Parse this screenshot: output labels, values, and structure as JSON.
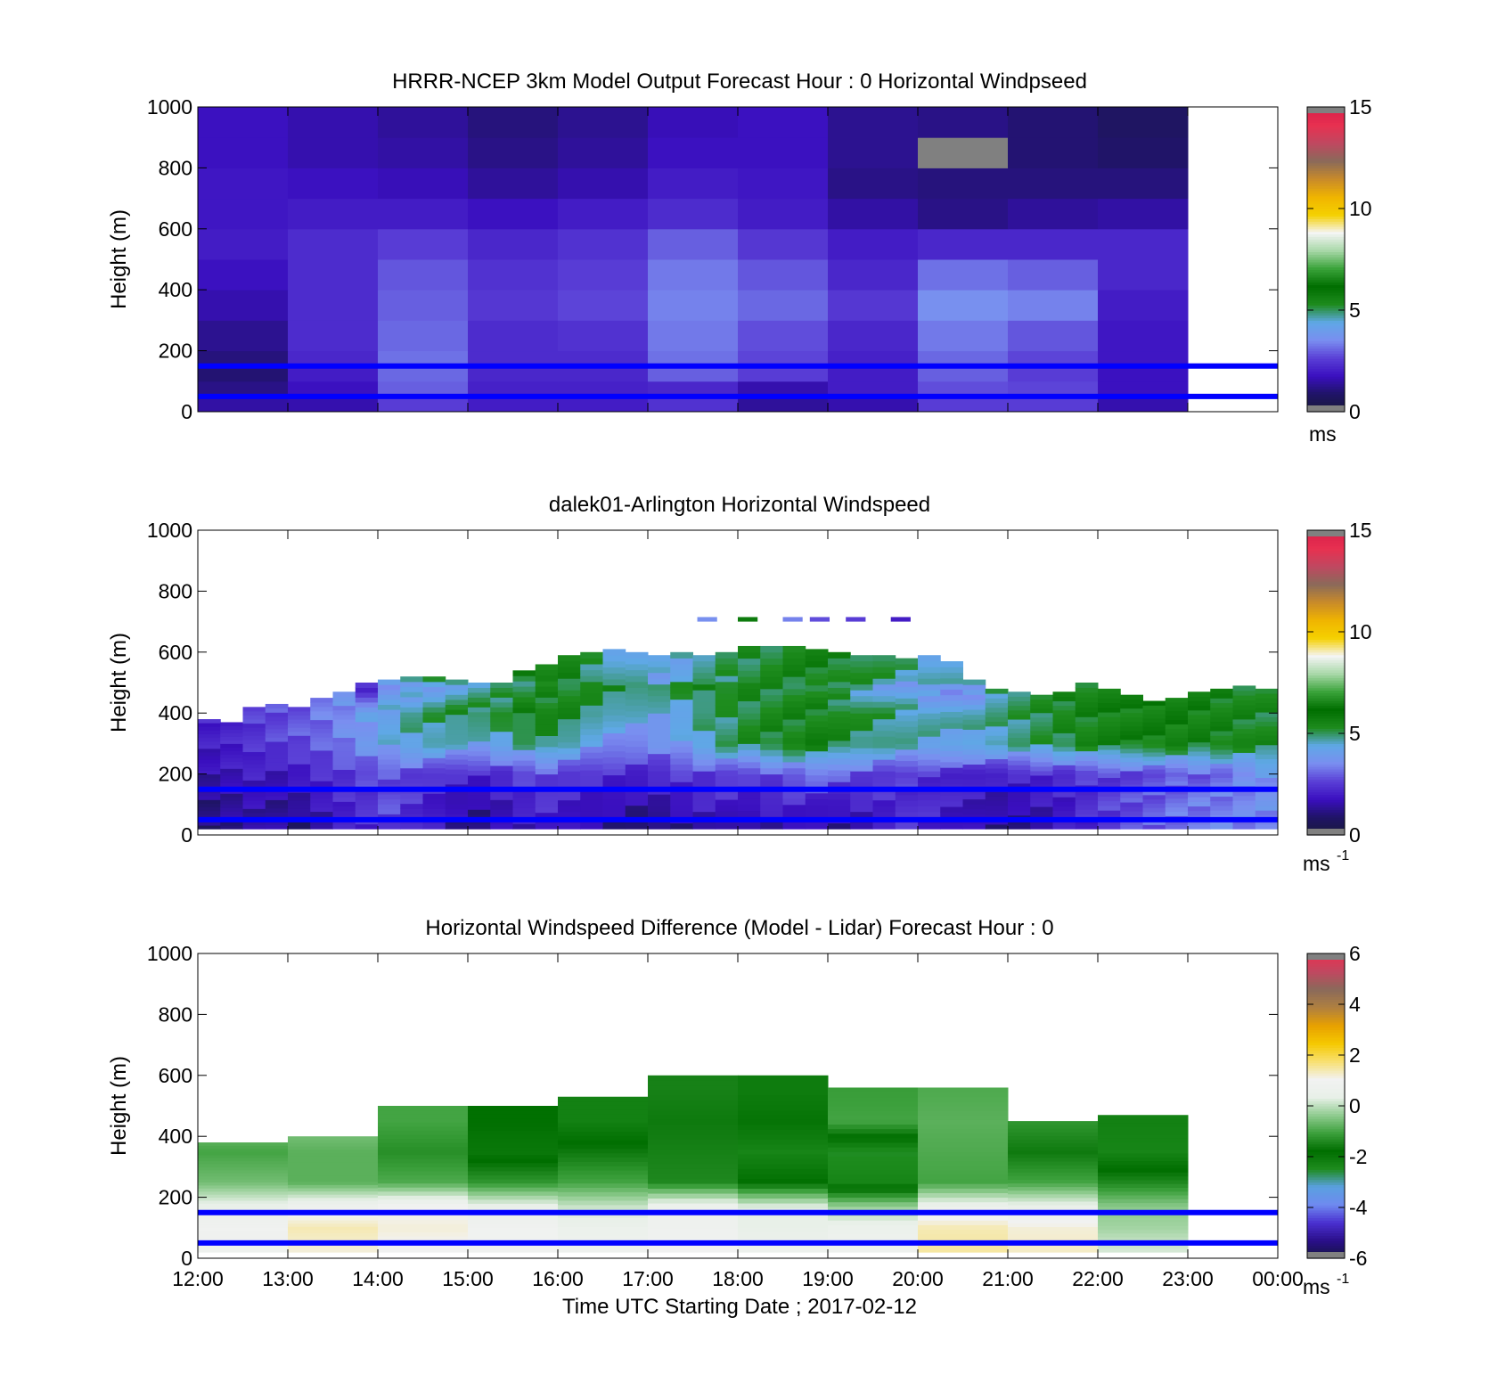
{
  "colors": {
    "speed_scale": [
      "#1a1a3a",
      "#1f1466",
      "#3a0fbf",
      "#5a3fd6",
      "#7a8ef0",
      "#5fa8e6",
      "#1e8c1e",
      "#006e00",
      "#3aa33a",
      "#a8d8a8",
      "#f5f5f5",
      "#f5d000",
      "#f0b400",
      "#c88a2a",
      "#8a6a5a",
      "#c04860",
      "#e83050",
      "#d8204a"
    ],
    "diff_scale": [
      "#141440",
      "#2a0f8a",
      "#4a30d0",
      "#6f8af0",
      "#5aa0e0",
      "#1e8c1e",
      "#006e00",
      "#3ca03c",
      "#90cc90",
      "#e8f0e8",
      "#f2f2f2",
      "#f8e070",
      "#f5c800",
      "#e8a000",
      "#b08040",
      "#8a6a5a",
      "#c04860",
      "#e83050"
    ],
    "boundary_line": "#0000ff",
    "missing": "#808080"
  },
  "chart_data": [
    {
      "type": "heatmap",
      "title": "HRRR-NCEP 3km Model Output   Forecast Hour : 0 Horizontal Windpseed",
      "ylabel": "Height (m)",
      "xlabel": "",
      "ylim": [
        0,
        1000
      ],
      "xlim": [
        12,
        24
      ],
      "yticks": [
        "0",
        "200",
        "400",
        "600",
        "800",
        "1000"
      ],
      "colorbar": {
        "ticks": [
          "0",
          "5",
          "10",
          "15"
        ],
        "range": [
          0,
          15
        ],
        "unit_label": "ms",
        "unit_sup": ""
      },
      "reference_lines_height_m": [
        150,
        50
      ],
      "hours": [
        12,
        13,
        14,
        15,
        16,
        17,
        18,
        19,
        20,
        21,
        22
      ],
      "heights": [
        0,
        50,
        100,
        150,
        200,
        300,
        400,
        500,
        600,
        700,
        800,
        900
      ],
      "values": [
        [
          1.5,
          1.6,
          2.6,
          2.0,
          2.0,
          2.4,
          1.4,
          1.6,
          2.6,
          2.6,
          1.6
        ],
        [
          1.2,
          1.8,
          3.0,
          2.1,
          2.1,
          2.2,
          1.6,
          2.0,
          2.8,
          2.7,
          1.8
        ],
        [
          1.0,
          2.0,
          3.1,
          2.2,
          2.2,
          3.0,
          2.6,
          2.0,
          3.0,
          2.6,
          1.8
        ],
        [
          1.1,
          2.2,
          3.2,
          2.3,
          2.3,
          3.2,
          2.7,
          2.1,
          3.1,
          2.7,
          1.9
        ],
        [
          1.3,
          2.3,
          3.1,
          2.3,
          2.4,
          3.3,
          2.8,
          2.2,
          3.3,
          2.9,
          1.9
        ],
        [
          1.6,
          2.3,
          3.0,
          2.5,
          2.7,
          3.4,
          3.1,
          2.5,
          3.6,
          3.4,
          2.0
        ],
        [
          1.8,
          2.3,
          2.9,
          2.4,
          2.6,
          3.3,
          2.9,
          2.2,
          3.2,
          3.0,
          2.2
        ],
        [
          2.0,
          2.3,
          2.6,
          2.2,
          2.4,
          3.0,
          2.5,
          2.0,
          2.2,
          2.2,
          2.2
        ],
        [
          1.9,
          2.0,
          2.0,
          1.8,
          2.0,
          2.3,
          2.0,
          1.5,
          1.2,
          1.4,
          1.5
        ],
        [
          1.9,
          1.8,
          1.7,
          1.4,
          1.6,
          2.0,
          1.9,
          1.2,
          1.1,
          1.1,
          1.1
        ],
        [
          1.8,
          1.6,
          1.5,
          1.2,
          1.4,
          1.8,
          1.8,
          1.3,
          null,
          1.0,
          0.9
        ],
        [
          1.8,
          1.6,
          1.4,
          1.1,
          1.3,
          1.7,
          1.8,
          1.3,
          1.2,
          1.0,
          0.8
        ]
      ]
    },
    {
      "type": "heatmap",
      "title": "dalek01-Arlington  Horizontal Windspeed",
      "ylabel": "Height (m)",
      "xlabel": "",
      "ylim": [
        0,
        1000
      ],
      "xlim": [
        12,
        24
      ],
      "yticks": [
        "0",
        "200",
        "400",
        "600",
        "800",
        "1000"
      ],
      "colorbar": {
        "ticks": [
          "0",
          "5",
          "10",
          "15"
        ],
        "range": [
          0,
          15
        ],
        "unit_label": "ms",
        "unit_sup": "-1"
      },
      "reference_lines_height_m": [
        150,
        50
      ],
      "column_width_h": 0.25,
      "column_start_hours": [
        12,
        12.25,
        12.5,
        12.75,
        13,
        13.25,
        13.5,
        13.75,
        14,
        14.25,
        14.5,
        14.75,
        15,
        15.25,
        15.5,
        15.75,
        16,
        16.25,
        16.5,
        16.75,
        17,
        17.25,
        17.5,
        17.75,
        18,
        18.25,
        18.5,
        18.75,
        19,
        19.25,
        19.5,
        19.75,
        20,
        20.25,
        20.5,
        20.75,
        21,
        21.25,
        21.5,
        21.75,
        22,
        22.25,
        22.5,
        22.75,
        23,
        23.25,
        23.5,
        23.75
      ],
      "column_top_heights_m": [
        380,
        370,
        420,
        430,
        420,
        450,
        470,
        500,
        510,
        520,
        520,
        510,
        500,
        500,
        540,
        560,
        590,
        600,
        610,
        600,
        590,
        600,
        590,
        600,
        620,
        620,
        620,
        610,
        600,
        590,
        590,
        580,
        590,
        570,
        510,
        480,
        470,
        460,
        470,
        500,
        480,
        460,
        440,
        450,
        470,
        480,
        490,
        480
      ],
      "levels": [
        {
          "height_m": 30,
          "values": [
            1.0,
            1.2,
            1.5,
            1.3,
            1.0,
            1.5,
            2.0,
            2.2,
            2.5,
            2.2,
            1.8,
            1.4,
            1.2,
            1.6,
            1.8,
            2.0,
            1.8,
            1.4,
            1.2,
            1.0,
            1.0,
            1.3,
            1.6,
            1.4,
            1.2,
            1.5,
            1.8,
            1.6,
            1.4,
            1.7,
            2.0,
            2.3,
            2.1,
            1.8,
            1.6,
            1.3,
            1.2,
            1.4,
            1.8,
            2.2,
            2.5,
            2.8,
            3.0,
            3.2,
            3.3,
            3.4,
            3.4,
            3.5
          ]
        },
        {
          "height_m": 100,
          "values": [
            1.2,
            1.4,
            1.6,
            1.4,
            1.5,
            1.8,
            2.2,
            2.5,
            2.8,
            2.4,
            2.0,
            1.6,
            1.4,
            1.8,
            2.1,
            2.3,
            2.0,
            1.8,
            1.6,
            1.5,
            1.6,
            1.8,
            2.0,
            2.1,
            1.9,
            2.0,
            2.2,
            2.0,
            1.8,
            2.0,
            2.2,
            2.4,
            2.2,
            2.0,
            1.8,
            1.6,
            1.6,
            1.8,
            2.0,
            2.3,
            2.6,
            2.8,
            3.0,
            3.2,
            3.3,
            3.4,
            3.5,
            3.6
          ]
        },
        {
          "height_m": 200,
          "values": [
            1.6,
            1.8,
            2.0,
            1.8,
            2.0,
            2.3,
            2.5,
            2.7,
            2.8,
            2.7,
            2.5,
            2.3,
            2.2,
            2.4,
            2.6,
            2.8,
            2.6,
            2.4,
            2.3,
            2.2,
            2.3,
            2.5,
            2.6,
            2.7,
            2.5,
            2.8,
            3.1,
            3.3,
            3.0,
            2.8,
            2.6,
            2.5,
            2.4,
            2.3,
            2.2,
            2.1,
            2.2,
            2.3,
            2.4,
            2.5,
            2.6,
            2.7,
            2.8,
            2.9,
            3.0,
            3.1,
            3.4,
            3.8
          ]
        },
        {
          "height_m": 300,
          "values": [
            2.0,
            2.1,
            2.4,
            2.6,
            2.8,
            3.0,
            3.4,
            3.8,
            4.2,
            4.5,
            4.6,
            4.4,
            4.2,
            4.4,
            4.8,
            5.0,
            4.6,
            4.0,
            3.6,
            3.4,
            3.6,
            4.0,
            4.6,
            5.0,
            5.2,
            5.4,
            5.5,
            5.6,
            5.3,
            5.0,
            4.8,
            4.6,
            4.5,
            4.4,
            4.5,
            4.6,
            4.8,
            5.0,
            5.2,
            5.4,
            5.5,
            5.6,
            5.6,
            5.6,
            5.5,
            5.5,
            5.4,
            5.3
          ]
        },
        {
          "height_m": 400,
          "values": [
            2.2,
            2.3,
            2.6,
            2.8,
            3.0,
            3.3,
            3.6,
            4.0,
            4.4,
            4.8,
            5.0,
            5.2,
            5.2,
            5.3,
            5.5,
            5.6,
            5.4,
            5.0,
            4.6,
            4.4,
            4.2,
            4.4,
            4.8,
            5.0,
            5.2,
            5.3,
            5.4,
            5.5,
            5.4,
            5.2,
            5.0,
            4.8,
            4.6,
            4.5,
            4.6,
            4.8,
            5.0,
            5.2,
            5.4,
            5.5,
            5.6,
            5.6,
            5.7,
            5.7,
            5.6,
            5.5,
            5.4,
            5.3
          ]
        },
        {
          "height_m": 500,
          "values": [
            null,
            null,
            null,
            null,
            null,
            null,
            null,
            2.0,
            3.5,
            3.8,
            4.0,
            4.2,
            4.5,
            4.8,
            5.0,
            5.2,
            5.3,
            5.4,
            5.4,
            5.3,
            5.2,
            5.3,
            5.4,
            5.5,
            5.4,
            5.3,
            5.2,
            5.0,
            4.8,
            4.4,
            4.0,
            3.8,
            3.6,
            3.4,
            3.3,
            null,
            null,
            null,
            null,
            null,
            null,
            null,
            null,
            null,
            null,
            null,
            null,
            null
          ]
        }
      ],
      "isolated_segments_700m": [
        {
          "hour": 17.55,
          "value": 3.6
        },
        {
          "hour": 18.0,
          "value": 5.8
        },
        {
          "hour": 18.5,
          "value": 3.4
        },
        {
          "hour": 18.8,
          "value": 2.8
        },
        {
          "hour": 19.2,
          "value": 2.6
        },
        {
          "hour": 19.7,
          "value": 2.0
        }
      ]
    },
    {
      "type": "heatmap",
      "title": "Horizontal Windspeed Difference (Model - Lidar) Forecast Hour : 0",
      "ylabel": "Height (m)",
      "xlabel": "Time UTC  Starting Date ; 2017-02-12",
      "ylim": [
        0,
        1000
      ],
      "xlim": [
        12,
        24
      ],
      "yticks": [
        "0",
        "200",
        "400",
        "600",
        "800",
        "1000"
      ],
      "xticks": [
        "12:00",
        "13:00",
        "14:00",
        "15:00",
        "16:00",
        "17:00",
        "18:00",
        "19:00",
        "20:00",
        "21:00",
        "22:00",
        "23:00",
        "00:00"
      ],
      "colorbar": {
        "ticks": [
          "-6",
          "-4",
          "-2",
          "0",
          "2",
          "4",
          "6"
        ],
        "range": [
          -6,
          6
        ],
        "unit_label": "ms",
        "unit_sup": "-1"
      },
      "reference_lines_height_m": [
        150,
        50
      ],
      "hours": [
        12,
        13,
        14,
        15,
        16,
        17,
        18,
        19,
        20,
        21,
        22
      ],
      "column_top_heights_m": [
        380,
        400,
        500,
        500,
        530,
        600,
        600,
        560,
        560,
        450,
        470
      ],
      "levels": [
        {
          "height_m": 30,
          "values": [
            0.8,
            1.2,
            1.0,
            0.9,
            0.8,
            1.0,
            0.7,
            0.8,
            1.5,
            1.3,
            0.2
          ]
        },
        {
          "height_m": 100,
          "values": [
            0.9,
            1.4,
            1.2,
            0.9,
            0.6,
            0.8,
            0.4,
            0.6,
            1.4,
            1.2,
            -0.2
          ]
        },
        {
          "height_m": 170,
          "values": [
            0.5,
            0.8,
            1.0,
            0.5,
            0.1,
            0.7,
            0.3,
            -0.3,
            0.6,
            0.5,
            -0.4
          ]
        },
        {
          "height_m": 250,
          "values": [
            -0.6,
            -0.8,
            -0.9,
            -1.2,
            -1.0,
            -1.4,
            -1.8,
            -2.3,
            -1.0,
            -1.0,
            -1.4
          ]
        },
        {
          "height_m": 350,
          "values": [
            -1.0,
            -0.8,
            -1.3,
            -2.0,
            -1.6,
            -1.5,
            -2.3,
            -2.5,
            -0.9,
            -1.6,
            -2.3
          ]
        },
        {
          "height_m": 450,
          "values": [
            -0.4,
            -0.4,
            -1.0,
            -1.8,
            -2.2,
            -1.6,
            -1.9,
            -1.0,
            -0.8,
            -1.2,
            -2.2
          ]
        },
        {
          "height_m": 550,
          "values": [
            null,
            null,
            null,
            null,
            null,
            -1.5,
            -2.1,
            -1.1,
            -0.9,
            null,
            null
          ]
        }
      ]
    }
  ]
}
